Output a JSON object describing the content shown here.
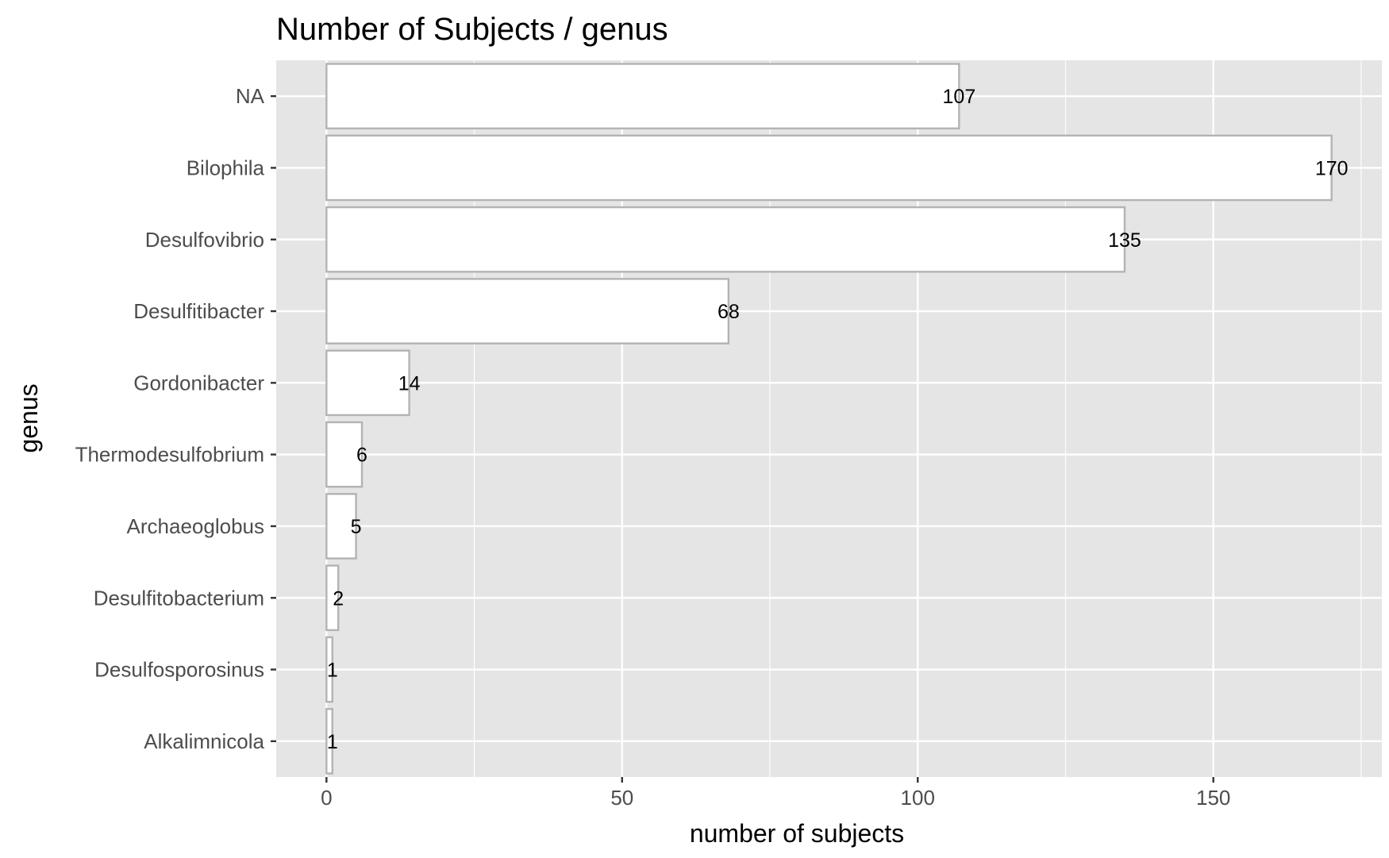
{
  "chart_data": {
    "type": "bar",
    "orientation": "horizontal",
    "title": "Number of Subjects / genus",
    "xlabel": "number of subjects",
    "ylabel": "genus",
    "categories": [
      "NA",
      "Bilophila",
      "Desulfovibrio",
      "Desulfitibacter",
      "Gordonibacter",
      "Thermodesulfobrium",
      "Archaeoglobus",
      "Desulfitobacterium",
      "Desulfosporosinus",
      "Alkalimnicola"
    ],
    "values": [
      107,
      170,
      135,
      68,
      14,
      6,
      5,
      2,
      1,
      1
    ],
    "data_labels": [
      "107",
      "170",
      "135",
      "68",
      "14",
      "6",
      "5",
      "2",
      "1",
      "1"
    ],
    "x_ticks": [
      0,
      50,
      100,
      150
    ],
    "x_tick_labels": [
      "0",
      "50",
      "100",
      "150"
    ],
    "xlim": [
      -8.5,
      178.5
    ],
    "grid": true,
    "colors": {
      "panel_background": "#e5e5e5",
      "grid_line": "#ffffff",
      "bar_fill": "#ffffff",
      "bar_outline": "#b3b3b3",
      "tick_label": "#4d4d4d",
      "text": "#000000"
    }
  }
}
